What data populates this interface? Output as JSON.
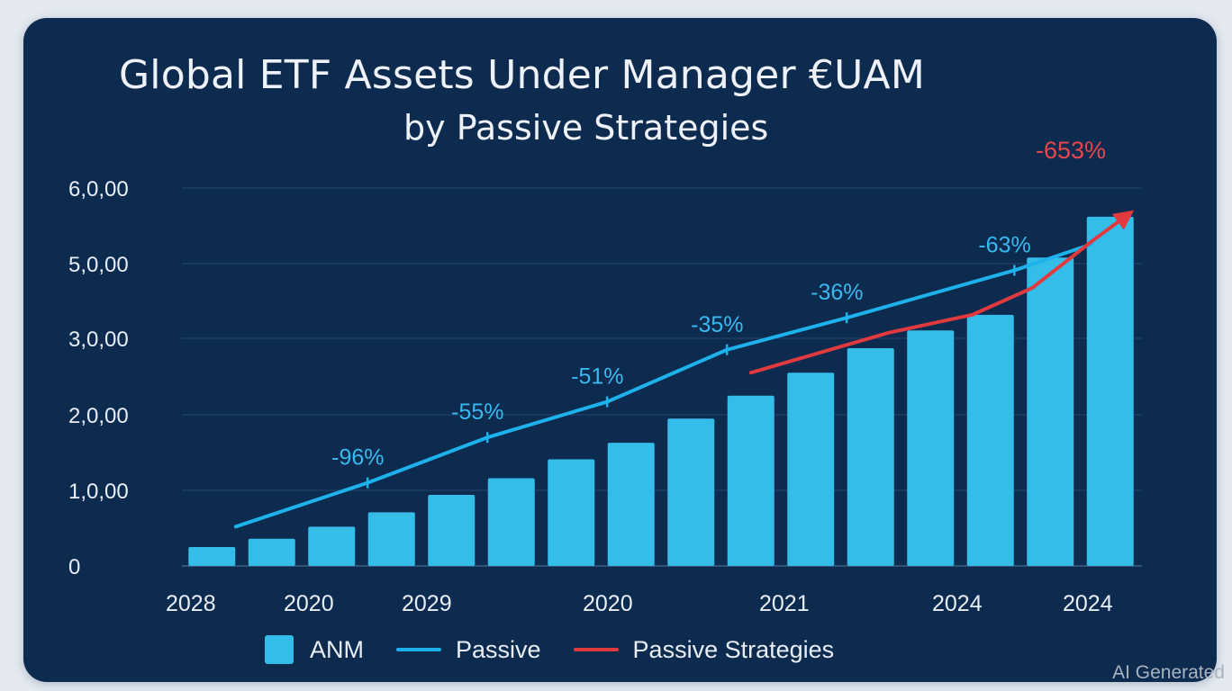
{
  "chart_data": {
    "type": "bar",
    "title": "Global ETF Assets Under Manager €UAM",
    "subtitle": "by Passive Strategies",
    "y_ticks": [
      "0",
      "1,0,00",
      "2,0,00",
      "3,0,00",
      "5,0,00",
      "6,0,00"
    ],
    "x_ticks": [
      "2028",
      "2020",
      "2029",
      "2020",
      "2021",
      "2024",
      "2024"
    ],
    "bars": {
      "name": "ANM",
      "values": [
        0.25,
        0.36,
        0.52,
        0.71,
        0.94,
        1.16,
        1.41,
        1.63,
        1.95,
        2.25,
        2.55,
        2.87,
        3.21,
        3.63,
        5.08,
        5.62
      ]
    },
    "passive_line": {
      "name": "Passive",
      "points": [
        [
          0.4,
          0.52
        ],
        [
          2.6,
          1.1
        ],
        [
          4.6,
          1.7
        ],
        [
          6.6,
          2.17
        ],
        [
          8.6,
          2.85
        ],
        [
          10.6,
          3.55
        ],
        [
          13.4,
          4.82
        ],
        [
          14.7,
          5.26
        ]
      ],
      "labels": [
        {
          "text": "-96%",
          "x": 2.6,
          "y": 1.1
        },
        {
          "text": "-55%",
          "x": 4.6,
          "y": 1.7
        },
        {
          "text": "-51%",
          "x": 6.6,
          "y": 2.17
        },
        {
          "text": "-35%",
          "x": 8.6,
          "y": 2.85
        },
        {
          "text": "-36%",
          "x": 10.6,
          "y": 3.55
        },
        {
          "text": "-63%",
          "x": 13.4,
          "y": 4.82
        }
      ]
    },
    "strategies_line": {
      "name": "Passive Strategies",
      "points": [
        [
          9.0,
          2.55
        ],
        [
          11.3,
          3.15
        ],
        [
          12.7,
          3.63
        ],
        [
          13.7,
          4.35
        ],
        [
          14.7,
          5.3
        ],
        [
          15.3,
          5.65
        ]
      ],
      "label": "-653%"
    },
    "colors": {
      "bar": "#35bde9",
      "passive": "#1db2ec",
      "strategies": "#e03a3e"
    },
    "grid": true,
    "legend": "bottom"
  },
  "watermark": "AI Generated"
}
